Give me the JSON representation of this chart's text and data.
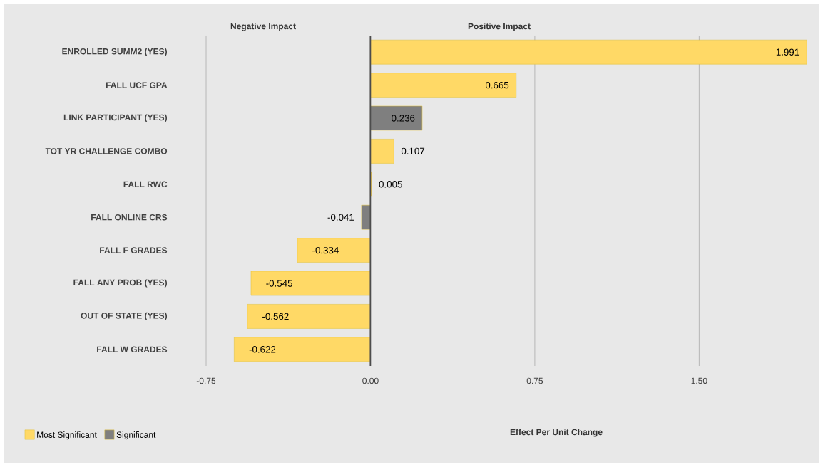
{
  "chart_data": {
    "type": "bar",
    "orientation": "horizontal",
    "annotations": [
      "Negative Impact",
      "Positive Impact",
      "Effect Per Unit Change"
    ],
    "categories": [
      "ENROLLED SUMM2 (YES)",
      "FALL UCF GPA",
      "LINK PARTICIPANT (YES)",
      "TOT YR CHALLENGE COMBO",
      "FALL RWC",
      "FALL ONLINE CRS",
      "FALL F GRADES",
      "FALL ANY PROB (YES)",
      "OUT OF STATE (YES)",
      "FALL W GRADES"
    ],
    "series": [
      {
        "name": "Most Significant",
        "color": "#ffd966",
        "values": [
          1.991,
          0.665,
          null,
          0.107,
          0.005,
          null,
          -0.334,
          -0.545,
          -0.562,
          -0.622
        ]
      },
      {
        "name": "Significant",
        "color": "#7f7f7f",
        "values": [
          null,
          null,
          0.236,
          null,
          null,
          -0.041,
          null,
          null,
          null,
          null
        ]
      }
    ],
    "xlim": [
      -0.75,
      2.0
    ],
    "xticks": [
      {
        "value": -0.75,
        "label": "-0.75"
      },
      {
        "value": 0,
        "label": "0.00"
      },
      {
        "value": 0.75,
        "label": "0.75"
      },
      {
        "value": 1.5,
        "label": "1.50"
      }
    ],
    "grid": "x",
    "legend": "bottom left",
    "data_labels": true
  }
}
